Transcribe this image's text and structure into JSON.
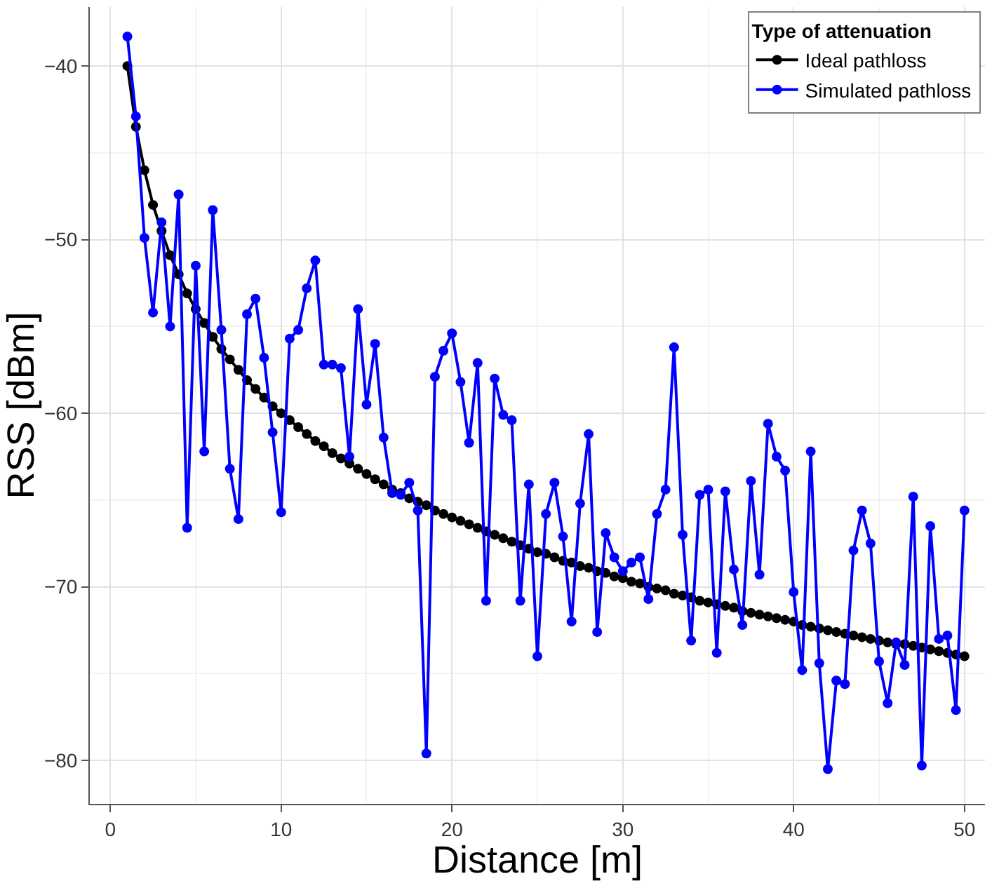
{
  "chart_data": {
    "type": "line",
    "xlabel": "Distance [m]",
    "ylabel": "RSS [dBm]",
    "legend_title": "Type of attenuation",
    "x": [
      1,
      1.5,
      2,
      2.5,
      3,
      3.5,
      4,
      4.5,
      5,
      5.5,
      6,
      6.5,
      7,
      7.5,
      8,
      8.5,
      9,
      9.5,
      10,
      10.5,
      11,
      11.5,
      12,
      12.5,
      13,
      13.5,
      14,
      14.5,
      15,
      15.5,
      16,
      16.5,
      17,
      17.5,
      18,
      18.5,
      19,
      19.5,
      20,
      20.5,
      21,
      21.5,
      22,
      22.5,
      23,
      23.5,
      24,
      24.5,
      25,
      25.5,
      26,
      26.5,
      27,
      27.5,
      28,
      28.5,
      29,
      29.5,
      30,
      30.5,
      31,
      31.5,
      32,
      32.5,
      33,
      33.5,
      34,
      34.5,
      35,
      35.5,
      36,
      36.5,
      37,
      37.5,
      38,
      38.5,
      39,
      39.5,
      40,
      40.5,
      41,
      41.5,
      42,
      42.5,
      43,
      43.5,
      44,
      44.5,
      45,
      45.5,
      46,
      46.5,
      47,
      47.5,
      48,
      48.5,
      49,
      49.5,
      50
    ],
    "series": [
      {
        "name": "Ideal pathloss",
        "color": "#000000",
        "values": [
          -40.0,
          -43.5,
          -46.0,
          -48.0,
          -49.5,
          -50.9,
          -52.0,
          -53.1,
          -54.0,
          -54.8,
          -55.6,
          -56.3,
          -56.9,
          -57.5,
          -58.1,
          -58.6,
          -59.1,
          -59.6,
          -60.0,
          -60.4,
          -60.8,
          -61.2,
          -61.6,
          -61.9,
          -62.3,
          -62.6,
          -62.9,
          -63.2,
          -63.5,
          -63.8,
          -64.1,
          -64.4,
          -64.6,
          -64.9,
          -65.1,
          -65.3,
          -65.6,
          -65.8,
          -66.0,
          -66.2,
          -66.4,
          -66.6,
          -66.8,
          -67.0,
          -67.2,
          -67.4,
          -67.6,
          -67.8,
          -68.0,
          -68.1,
          -68.3,
          -68.5,
          -68.6,
          -68.8,
          -68.9,
          -69.1,
          -69.2,
          -69.4,
          -69.5,
          -69.7,
          -69.8,
          -70.0,
          -70.1,
          -70.2,
          -70.4,
          -70.5,
          -70.6,
          -70.8,
          -70.9,
          -71.0,
          -71.1,
          -71.2,
          -71.4,
          -71.5,
          -71.6,
          -71.7,
          -71.8,
          -71.9,
          -72.0,
          -72.2,
          -72.3,
          -72.4,
          -72.5,
          -72.6,
          -72.7,
          -72.8,
          -72.9,
          -73.0,
          -73.1,
          -73.2,
          -73.3,
          -73.3,
          -73.4,
          -73.5,
          -73.6,
          -73.7,
          -73.8,
          -73.9,
          -74.0
        ]
      },
      {
        "name": "Simulated pathloss",
        "color": "#0000ff",
        "values": [
          -38.3,
          -42.9,
          -49.9,
          -54.2,
          -49.0,
          -55.0,
          -47.4,
          -66.6,
          -51.5,
          -62.2,
          -48.3,
          -55.2,
          -63.2,
          -66.1,
          -54.3,
          -53.4,
          -56.8,
          -61.1,
          -65.7,
          -55.7,
          -55.2,
          -52.8,
          -51.2,
          -57.2,
          -57.2,
          -57.4,
          -62.5,
          -54.0,
          -59.5,
          -56.0,
          -61.4,
          -64.6,
          -64.7,
          -64.0,
          -65.6,
          -79.6,
          -57.9,
          -56.4,
          -55.4,
          -58.2,
          -61.7,
          -57.1,
          -70.8,
          -58.0,
          -60.1,
          -60.4,
          -70.8,
          -64.1,
          -74.0,
          -65.8,
          -64.0,
          -67.1,
          -72.0,
          -65.2,
          -61.2,
          -72.6,
          -66.9,
          -68.3,
          -69.1,
          -68.6,
          -68.3,
          -70.7,
          -65.8,
          -64.4,
          -56.2,
          -67.0,
          -73.1,
          -64.7,
          -64.4,
          -73.8,
          -64.5,
          -69.0,
          -72.2,
          -63.9,
          -69.3,
          -60.6,
          -62.5,
          -63.3,
          -70.3,
          -74.8,
          -62.2,
          -74.4,
          -80.5,
          -75.4,
          -75.6,
          -67.9,
          -65.6,
          -67.5,
          -74.3,
          -76.7,
          -73.2,
          -74.5,
          -64.8,
          -80.3,
          -66.5,
          -73.0,
          -72.8,
          -77.1,
          -65.6
        ]
      }
    ],
    "xlim": [
      -1.2,
      51.2
    ],
    "ylim": [
      -82.5,
      -36.6
    ],
    "xticks": [
      0,
      10,
      20,
      30,
      40,
      50
    ],
    "yticks": [
      {
        "value": -40,
        "label": "−40"
      },
      {
        "value": -50,
        "label": "−50"
      },
      {
        "value": -60,
        "label": "−60"
      },
      {
        "value": -70,
        "label": "−70"
      },
      {
        "value": -80,
        "label": "−80"
      }
    ],
    "grid": true,
    "legend": "top right",
    "marker": "circle",
    "line_style": "solid"
  }
}
